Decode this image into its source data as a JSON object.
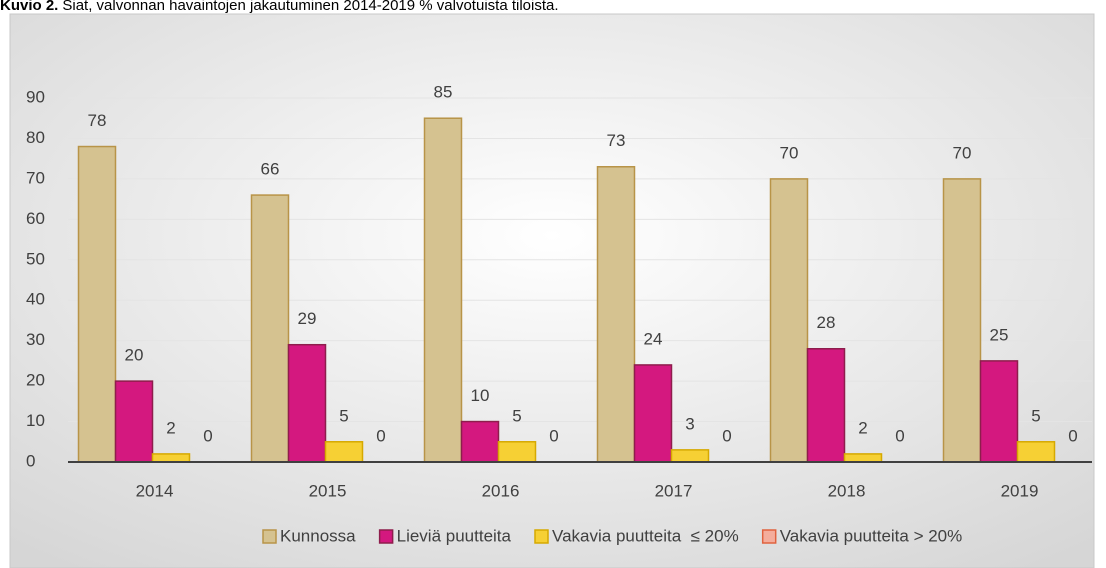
{
  "chart_data": {
    "type": "bar",
    "title_label": "Kuvio 2.",
    "title": "Siat, valvonnan havaintojen jakautuminen 2014-2019 % valvotuista tiloista.",
    "categories": [
      "2014",
      "2015",
      "2016",
      "2017",
      "2018",
      "2019"
    ],
    "series": [
      {
        "name": "Kunnossa",
        "color": "#d5c290",
        "stroke": "#b89448",
        "values": [
          78,
          66,
          85,
          73,
          70,
          70
        ]
      },
      {
        "name": "Lieviä puutteita",
        "color": "#d4187f",
        "stroke": "#8e1d4c",
        "values": [
          20,
          29,
          10,
          24,
          28,
          25
        ]
      },
      {
        "name": "Vakavia puutteita  ≤ 20%",
        "color": "#f6d034",
        "stroke": "#d6a900",
        "values": [
          2,
          5,
          5,
          3,
          2,
          5
        ]
      },
      {
        "name": "Vakavia puutteita > 20%",
        "color": "#f4ad9c",
        "stroke": "#e0623f",
        "values": [
          0,
          0,
          0,
          0,
          0,
          0
        ]
      }
    ],
    "ylim": [
      0,
      90
    ],
    "yticks": [
      0,
      10,
      20,
      30,
      40,
      50,
      60,
      70,
      80,
      90
    ],
    "grid": true,
    "legend": "bottom"
  }
}
